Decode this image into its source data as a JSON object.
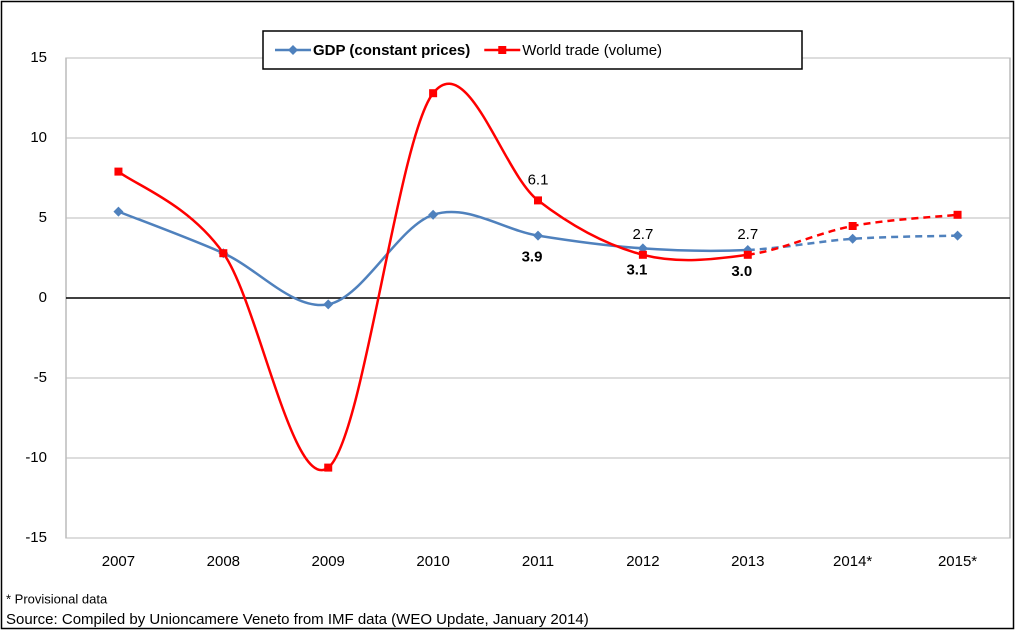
{
  "chart_data": {
    "type": "line",
    "categories": [
      "2007",
      "2008",
      "2009",
      "2010",
      "2011",
      "2012",
      "2013",
      "2014*",
      "2015*"
    ],
    "series": [
      {
        "name": "GDP (constant prices)",
        "color": "#4f81bd",
        "marker": "diamond",
        "values": [
          5.4,
          2.8,
          -0.4,
          5.2,
          3.9,
          3.1,
          3.0,
          3.7,
          3.9
        ],
        "value_labels": [
          null,
          null,
          null,
          null,
          "3.9",
          "3.1",
          "3.0",
          null,
          null
        ]
      },
      {
        "name": "World trade (volume)",
        "color": "#ff0000",
        "marker": "square",
        "values": [
          7.9,
          2.8,
          -10.6,
          12.8,
          6.1,
          2.7,
          2.7,
          4.5,
          5.2
        ],
        "value_labels": [
          null,
          null,
          null,
          null,
          "6.1",
          "2.7",
          "2.7",
          null,
          null
        ]
      }
    ],
    "ylim": [
      -15,
      15
    ],
    "yticks": [
      -15,
      -10,
      -5,
      0,
      5,
      10,
      15
    ],
    "grid": true,
    "legend": "top",
    "notes": [
      "* Provisional data",
      "Source: Compiled by Unioncamere Veneto from IMF data (WEO Update, January 2014)"
    ]
  }
}
